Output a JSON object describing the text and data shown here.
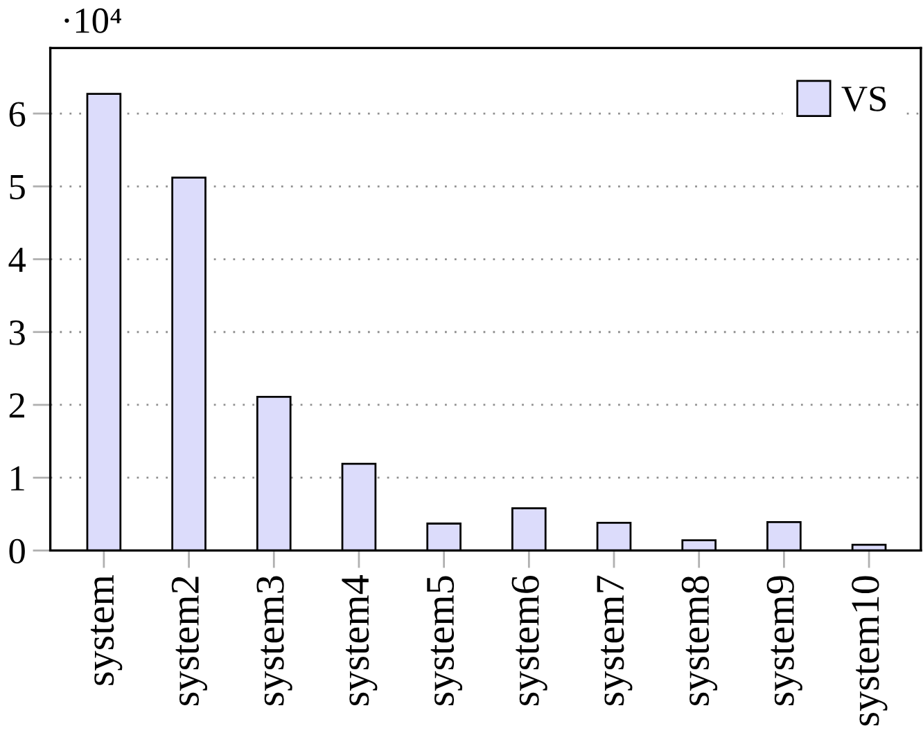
{
  "chart_data": {
    "type": "bar",
    "categories": [
      "system",
      "system2",
      "system3",
      "system4",
      "system5",
      "system6",
      "system7",
      "system8",
      "system9",
      "system10"
    ],
    "series": [
      {
        "name": "VS",
        "color": "#dcdcfb",
        "values": [
          6.27,
          5.12,
          2.11,
          1.19,
          0.37,
          0.58,
          0.38,
          0.14,
          0.39,
          0.08
        ]
      }
    ],
    "ylim": [
      0,
      6.9
    ],
    "yticks": [
      0,
      1,
      2,
      3,
      4,
      5,
      6
    ],
    "annotations": [
      "·10⁴"
    ],
    "grid": "y",
    "legend": "top right"
  }
}
